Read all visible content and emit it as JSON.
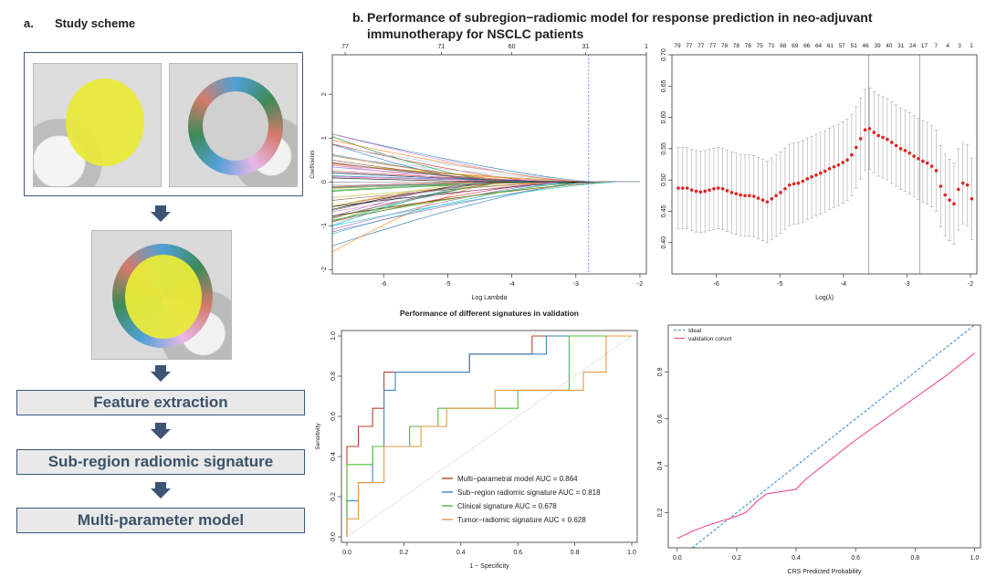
{
  "panel_a": {
    "label": "a.",
    "title": "Study scheme",
    "steps": [
      "Feature extraction",
      "Sub-region radiomic signature",
      "Multi-parameter model"
    ]
  },
  "panel_b": {
    "label": "b.",
    "title": "Performance of subregion−radiomic model for  response prediction in  neo-adjuvant immunotherapy for NSCLC patients"
  },
  "chart_data": [
    {
      "type": "line",
      "xlabel": "Log Lambda",
      "ylabel": "Coefficients",
      "xlim": [
        -6.8,
        -1.9
      ],
      "ylim": [
        -2.1,
        2.9
      ],
      "xticks": [
        -6,
        -5,
        -4,
        -3,
        -2
      ],
      "yticks": [
        -2,
        -1,
        0,
        1,
        2
      ],
      "top_axis_ticks": [
        {
          "x": -6.6,
          "label": "77"
        },
        {
          "x": -5.1,
          "label": "71"
        },
        {
          "x": -4.0,
          "label": "60"
        },
        {
          "x": -2.85,
          "label": "31"
        },
        {
          "x": -1.9,
          "label": "1"
        }
      ],
      "vline_x": -2.8,
      "n_paths": 60
    },
    {
      "type": "scatter",
      "xlabel": "Log(λ)",
      "ylabel": "",
      "xlim": [
        -6.7,
        -1.9
      ],
      "ylim": [
        0.35,
        0.7
      ],
      "xticks": [
        -6,
        -5,
        -4,
        -3,
        -2
      ],
      "yticks": [
        0.4,
        0.45,
        0.5,
        0.55,
        0.6,
        0.65,
        0.7
      ],
      "top_axis_labels": [
        "79",
        "77",
        "77",
        "77",
        "78",
        "78",
        "78",
        "75",
        "71",
        "68",
        "69",
        "66",
        "64",
        "61",
        "57",
        "51",
        "46",
        "39",
        "40",
        "31",
        "24",
        "17",
        "7",
        "4",
        "3",
        "1"
      ],
      "vlines": [
        -3.6,
        -2.8
      ],
      "x": [
        -6.6,
        -6.53,
        -6.46,
        -6.39,
        -6.32,
        -6.25,
        -6.18,
        -6.11,
        -6.04,
        -5.97,
        -5.9,
        -5.83,
        -5.76,
        -5.69,
        -5.62,
        -5.55,
        -5.48,
        -5.41,
        -5.34,
        -5.27,
        -5.2,
        -5.13,
        -5.06,
        -4.99,
        -4.92,
        -4.85,
        -4.78,
        -4.71,
        -4.64,
        -4.57,
        -4.5,
        -4.43,
        -4.36,
        -4.29,
        -4.22,
        -4.15,
        -4.08,
        -4.01,
        -3.94,
        -3.87,
        -3.8,
        -3.73,
        -3.66,
        -3.59,
        -3.52,
        -3.45,
        -3.38,
        -3.31,
        -3.24,
        -3.17,
        -3.1,
        -3.03,
        -2.96,
        -2.89,
        -2.82,
        -2.75,
        -2.68,
        -2.61,
        -2.54,
        -2.47,
        -2.4,
        -2.33,
        -2.26,
        -2.19,
        -2.12,
        -2.05,
        -1.98
      ],
      "y": [
        0.487,
        0.487,
        0.487,
        0.484,
        0.482,
        0.481,
        0.482,
        0.484,
        0.486,
        0.487,
        0.486,
        0.483,
        0.48,
        0.478,
        0.476,
        0.475,
        0.475,
        0.474,
        0.471,
        0.468,
        0.465,
        0.47,
        0.475,
        0.48,
        0.486,
        0.492,
        0.494,
        0.495,
        0.498,
        0.502,
        0.505,
        0.508,
        0.511,
        0.514,
        0.518,
        0.521,
        0.524,
        0.528,
        0.532,
        0.54,
        0.552,
        0.566,
        0.58,
        0.582,
        0.576,
        0.571,
        0.568,
        0.565,
        0.56,
        0.555,
        0.55,
        0.547,
        0.543,
        0.538,
        0.534,
        0.53,
        0.527,
        0.522,
        0.515,
        0.49,
        0.476,
        0.468,
        0.462,
        0.485,
        0.495,
        0.492,
        0.47
      ],
      "err": 0.065
    },
    {
      "type": "line",
      "title": "Performance of different signatures in validation",
      "xlabel": "1 − Specificity",
      "ylabel": "Sensitivity",
      "xlim": [
        0,
        1
      ],
      "ylim": [
        0,
        1
      ],
      "xticks": [
        0.0,
        0.2,
        0.4,
        0.6,
        0.8,
        1.0
      ],
      "yticks": [
        0.0,
        0.2,
        0.4,
        0.6,
        0.8,
        1.0
      ],
      "series": [
        {
          "name": "Multi−parametral model AUC = 0.864",
          "color": "#b5422f",
          "x": [
            0,
            0,
            0.04,
            0.04,
            0.09,
            0.09,
            0.13,
            0.13,
            0.22,
            0.22,
            0.43,
            0.43,
            0.65,
            0.65,
            1.0
          ],
          "y": [
            0,
            0.45,
            0.45,
            0.55,
            0.55,
            0.64,
            0.64,
            0.82,
            0.82,
            0.82,
            0.82,
            0.91,
            0.91,
            1.0,
            1.0
          ]
        },
        {
          "name": "Sub−region radiomic signature AUC = 0.818",
          "color": "#3f86bf",
          "x": [
            0,
            0,
            0.04,
            0.04,
            0.09,
            0.09,
            0.13,
            0.13,
            0.17,
            0.17,
            0.43,
            0.43,
            0.7,
            0.7,
            1.0
          ],
          "y": [
            0,
            0.18,
            0.18,
            0.27,
            0.27,
            0.45,
            0.45,
            0.73,
            0.73,
            0.82,
            0.82,
            0.91,
            0.91,
            1.0,
            1.0
          ]
        },
        {
          "name": "Clinical signature AUC = 0.678",
          "color": "#4dbf3a",
          "x": [
            0,
            0,
            0.04,
            0.04,
            0.09,
            0.09,
            0.22,
            0.22,
            0.32,
            0.32,
            0.6,
            0.6,
            0.78,
            0.78,
            1.0
          ],
          "y": [
            0,
            0.36,
            0.36,
            0.36,
            0.36,
            0.45,
            0.45,
            0.55,
            0.55,
            0.64,
            0.64,
            0.73,
            0.73,
            1.0,
            1.0
          ]
        },
        {
          "name": "Tumor−radiomic signature AUC = 0.628",
          "color": "#e39a44",
          "x": [
            0,
            0,
            0.04,
            0.04,
            0.13,
            0.13,
            0.26,
            0.26,
            0.35,
            0.35,
            0.52,
            0.52,
            0.83,
            0.83,
            0.91,
            0.91,
            1.0
          ],
          "y": [
            0,
            0.09,
            0.09,
            0.27,
            0.27,
            0.45,
            0.45,
            0.55,
            0.55,
            0.64,
            0.64,
            0.73,
            0.73,
            0.82,
            0.82,
            1.0,
            1.0
          ]
        }
      ],
      "reference_diagonal": true
    },
    {
      "type": "line",
      "xlabel": "CRS Predicted Probability",
      "ylabel": "",
      "xlim": [
        -0.03,
        1.02
      ],
      "ylim": [
        0.05,
        1.0
      ],
      "xticks": [
        0.0,
        0.2,
        0.4,
        0.6,
        0.8,
        1.0
      ],
      "yticks": [
        0.2,
        0.4,
        0.6,
        0.8
      ],
      "legend": [
        "Ideal",
        "validation cohort"
      ],
      "series": [
        {
          "name": "Ideal",
          "color": "#3d8fd0",
          "dashed": true,
          "x": [
            0.05,
            1.0
          ],
          "y": [
            0.05,
            1.0
          ]
        },
        {
          "name": "validation cohort",
          "color": "#e9508f",
          "x": [
            0.0,
            0.05,
            0.1,
            0.15,
            0.2,
            0.23,
            0.27,
            0.3,
            0.35,
            0.4,
            0.43,
            0.48,
            0.55,
            0.6,
            0.7,
            0.8,
            0.9,
            1.0
          ],
          "y": [
            0.09,
            0.12,
            0.145,
            0.165,
            0.185,
            0.2,
            0.25,
            0.28,
            0.29,
            0.3,
            0.34,
            0.39,
            0.46,
            0.51,
            0.6,
            0.69,
            0.78,
            0.88
          ]
        }
      ]
    }
  ]
}
